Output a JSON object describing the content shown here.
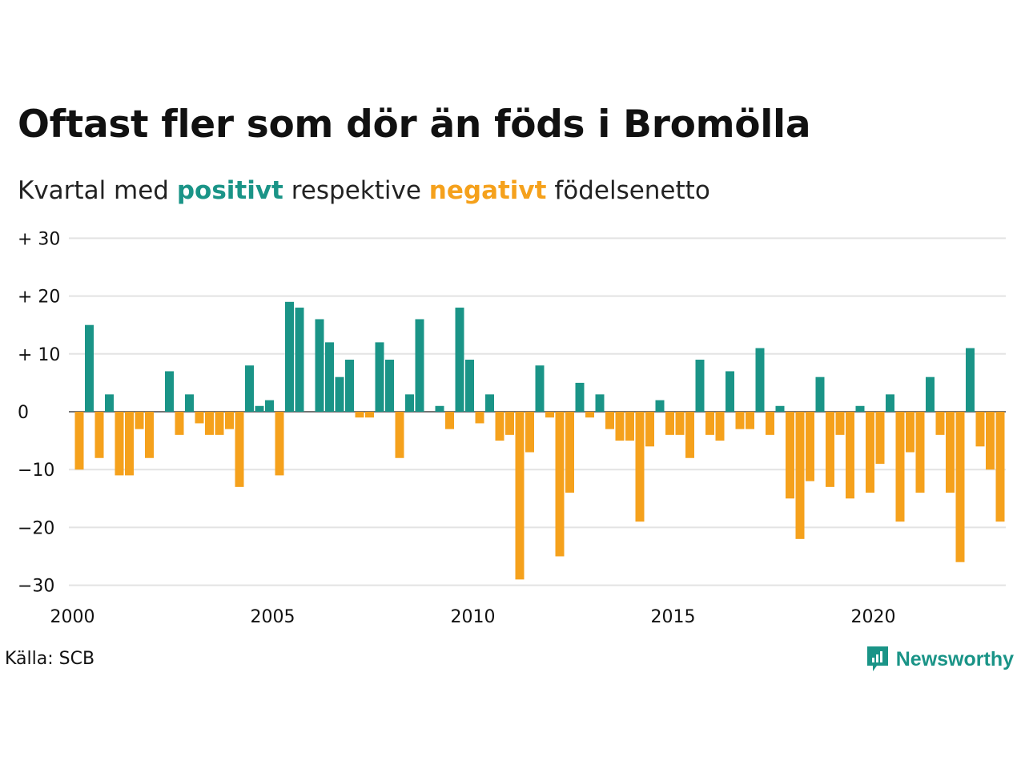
{
  "title": "Oftast fler som dör än föds i Bromölla",
  "subtitle": {
    "prefix": "Kvartal med ",
    "positive_word": "positivt",
    "middle": " respektive ",
    "negative_word": "negativt",
    "suffix": " födelsenetto"
  },
  "source": "Källa: SCB",
  "brand": {
    "name": "Newsworthy",
    "icon": "newsworthy-logo-icon"
  },
  "colors": {
    "positive": "#1a9487",
    "negative": "#f5a11c",
    "grid": "#e3e3e3",
    "text": "#111111"
  },
  "chart_data": {
    "type": "bar",
    "x_start_year": 2000,
    "periods_per_year": 4,
    "y_ticks": [
      {
        "value": 30,
        "label": "+ 30"
      },
      {
        "value": 20,
        "label": "+ 20"
      },
      {
        "value": 10,
        "label": "+ 10"
      },
      {
        "value": 0,
        "label": "0"
      },
      {
        "value": -10,
        "label": "−10"
      },
      {
        "value": -20,
        "label": "−20"
      },
      {
        "value": -30,
        "label": "−30"
      }
    ],
    "x_ticks": [
      {
        "year": 2000,
        "label": "2000"
      },
      {
        "year": 2005,
        "label": "2005"
      },
      {
        "year": 2010,
        "label": "2010"
      },
      {
        "year": 2015,
        "label": "2015"
      },
      {
        "year": 2020,
        "label": "2020"
      }
    ],
    "ylim": [
      -30,
      30
    ],
    "values": [
      -10,
      15,
      -8,
      3,
      -11,
      -11,
      -3,
      -8,
      0,
      7,
      -4,
      3,
      -2,
      -4,
      -4,
      -3,
      -13,
      8,
      1,
      2,
      -11,
      19,
      18,
      0,
      16,
      12,
      6,
      9,
      -1,
      -1,
      12,
      9,
      -8,
      3,
      16,
      0,
      1,
      -3,
      18,
      9,
      -2,
      3,
      -5,
      -4,
      -29,
      -7,
      8,
      -1,
      -25,
      -14,
      5,
      -1,
      3,
      -3,
      -5,
      -5,
      -19,
      -6,
      2,
      -4,
      -4,
      -8,
      9,
      -4,
      -5,
      7,
      -3,
      -3,
      11,
      -4,
      1,
      -15,
      -22,
      -12,
      6,
      -13,
      -4,
      -15,
      1,
      -14,
      -9,
      3,
      -19,
      -7,
      -14,
      6,
      -4,
      -14,
      -26,
      11,
      -6,
      -10,
      -19
    ]
  }
}
